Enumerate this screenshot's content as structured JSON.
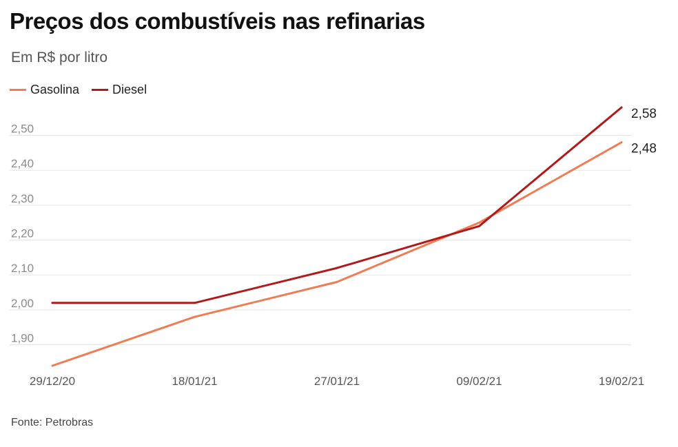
{
  "header": {
    "title": "Preços dos combustíveis nas refinarias",
    "subtitle": "Em R$ por litro"
  },
  "legend": {
    "items": [
      {
        "label": "Gasolina",
        "color": "#f07c54"
      },
      {
        "label": "Diesel",
        "color": "#b01a1a"
      }
    ]
  },
  "source": "Fonte: Petrobras",
  "chart_data": {
    "type": "line",
    "title": "Preços dos combustíveis nas refinarias",
    "subtitle": "Em R$ por litro",
    "x": [
      "29/12/20",
      "18/01/21",
      "27/01/21",
      "09/02/21",
      "19/02/21"
    ],
    "series": [
      {
        "name": "Gasolina",
        "color": "#f07c54",
        "values": [
          1.84,
          1.98,
          2.08,
          2.25,
          2.48
        ]
      },
      {
        "name": "Diesel",
        "color": "#b01a1a",
        "values": [
          2.02,
          2.02,
          2.12,
          2.24,
          2.58
        ]
      }
    ],
    "end_labels": [
      "2,48",
      "2,58"
    ],
    "yticks": [
      1.9,
      2.0,
      2.1,
      2.2,
      2.3,
      2.4,
      2.5
    ],
    "ytick_labels": [
      "1,90",
      "2,00",
      "2,10",
      "2,20",
      "2,30",
      "2,40",
      "2,50"
    ],
    "ylim": [
      1.84,
      2.58
    ],
    "grid": true,
    "legend_position": "top-left"
  }
}
